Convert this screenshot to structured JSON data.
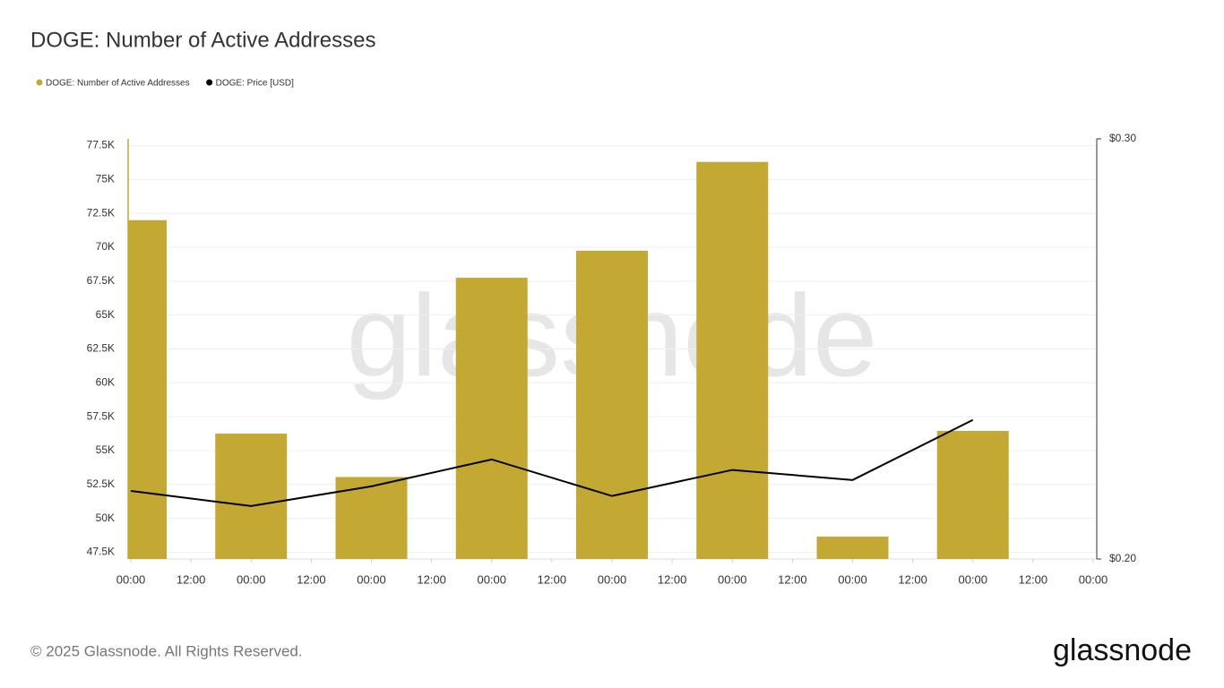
{
  "chart_data": {
    "type": "bar-line",
    "title": "DOGE: Number of Active Addresses",
    "watermark": "glassnode",
    "footer": "© 2025 Glassnode. All Rights Reserved.",
    "logo": "glassnode",
    "x": [
      0,
      24,
      48,
      72,
      96,
      120,
      144,
      168
    ],
    "xlim": [
      0,
      192
    ],
    "xticks": [
      {
        "value": 0,
        "label": "00:00"
      },
      {
        "value": 12,
        "label": "12:00"
      },
      {
        "value": 24,
        "label": "00:00"
      },
      {
        "value": 36,
        "label": "12:00"
      },
      {
        "value": 48,
        "label": "00:00"
      },
      {
        "value": 60,
        "label": "12:00"
      },
      {
        "value": 72,
        "label": "00:00"
      },
      {
        "value": 84,
        "label": "12:00"
      },
      {
        "value": 96,
        "label": "00:00"
      },
      {
        "value": 108,
        "label": "12:00"
      },
      {
        "value": 120,
        "label": "00:00"
      },
      {
        "value": 132,
        "label": "12:00"
      },
      {
        "value": 144,
        "label": "00:00"
      },
      {
        "value": 156,
        "label": "12:00"
      },
      {
        "value": 168,
        "label": "00:00"
      },
      {
        "value": 180,
        "label": "12:00"
      },
      {
        "value": 192,
        "label": "00:00"
      }
    ],
    "series": [
      {
        "name": "DOGE: Number of Active Addresses",
        "type": "bar",
        "color": "#c4a834",
        "values": [
          72000,
          56250,
          53050,
          67750,
          69750,
          76300,
          48650,
          56450
        ]
      },
      {
        "name": "DOGE: Price [USD]",
        "type": "line",
        "color": "#000000",
        "axis": "y2",
        "values": [
          0.2162,
          0.2126,
          0.2173,
          0.2237,
          0.215,
          0.2212,
          0.2188,
          0.2331
        ]
      }
    ],
    "ylim": [
      47000,
      78000
    ],
    "yticks": [
      {
        "value": 47500,
        "label": "47.5K"
      },
      {
        "value": 50000,
        "label": "50K"
      },
      {
        "value": 52500,
        "label": "52.5K"
      },
      {
        "value": 55000,
        "label": "55K"
      },
      {
        "value": 57500,
        "label": "57.5K"
      },
      {
        "value": 60000,
        "label": "60K"
      },
      {
        "value": 62500,
        "label": "62.5K"
      },
      {
        "value": 65000,
        "label": "65K"
      },
      {
        "value": 67500,
        "label": "67.5K"
      },
      {
        "value": 70000,
        "label": "70K"
      },
      {
        "value": 72500,
        "label": "72.5K"
      },
      {
        "value": 75000,
        "label": "75K"
      },
      {
        "value": 77500,
        "label": "77.5K"
      }
    ],
    "y2lim": [
      0.2,
      0.3
    ],
    "y2ticks": [
      {
        "value": 0.2,
        "label": "$0.20"
      },
      {
        "value": 0.3,
        "label": "$0.30"
      }
    ],
    "grid": true
  }
}
